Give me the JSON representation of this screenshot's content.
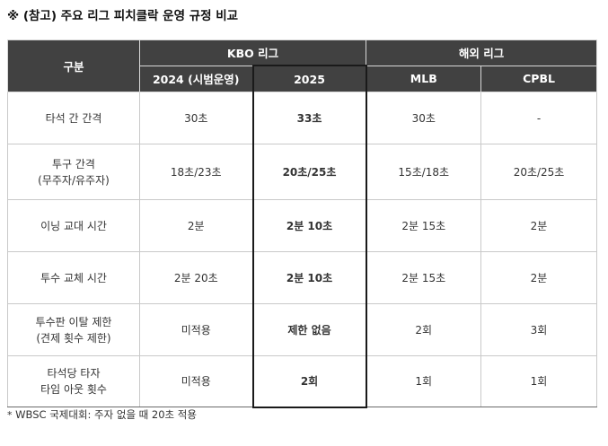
{
  "title": "※ (참고) 주요 리그 피치클락 운영 규정 비교",
  "header": {
    "category": "구분",
    "kbo_group": "KBO 리그",
    "overseas_group": "해외 리그",
    "col_2024": "2024 (시범운영)",
    "col_2025": "2025",
    "col_mlb": "MLB",
    "col_cpbl": "CPBL"
  },
  "rows": [
    {
      "label_line1": "타석 간 간격",
      "label_line2": "",
      "v2024": "30초",
      "v2025": "33초",
      "mlb": "30초",
      "cpbl": "-"
    },
    {
      "label_line1": "투구 간격",
      "label_line2": "(무주자/유주자)",
      "v2024": "18초/23초",
      "v2025": "20초/25초",
      "mlb": "15초/18초",
      "cpbl": "20초/25초"
    },
    {
      "label_line1": "이닝 교대 시간",
      "label_line2": "",
      "v2024": "2분",
      "v2025": "2분 10초",
      "mlb": "2분 15초",
      "cpbl": "2분"
    },
    {
      "label_line1": "투수 교체 시간",
      "label_line2": "",
      "v2024": "2분 20초",
      "v2025": "2분 10초",
      "mlb": "2분 15초",
      "cpbl": "2분"
    },
    {
      "label_line1": "투수판 이탈 제한",
      "label_line2": "(견제 횟수 제한)",
      "v2024": "미적용",
      "v2025": "제한 없음",
      "mlb": "2회",
      "cpbl": "3회"
    },
    {
      "label_line1": "타석당 타자",
      "label_line2": "타임 아웃 횟수",
      "v2024": "미적용",
      "v2025": "2회",
      "mlb": "1회",
      "cpbl": "1회"
    }
  ],
  "footnote": {
    "mark": "*",
    "text": " WBSC 국제대회: 주자 없을 때 20초 적용"
  }
}
